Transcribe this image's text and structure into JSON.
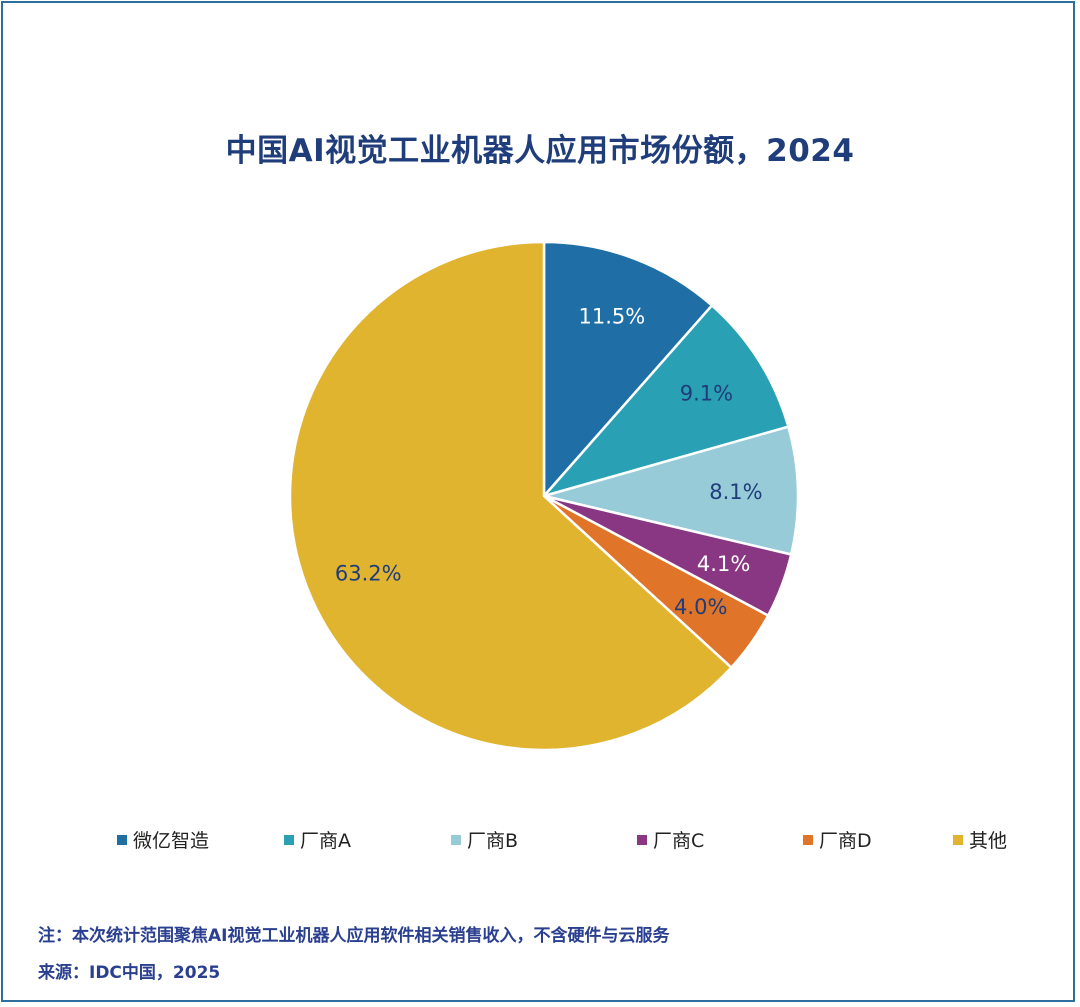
{
  "chart_data": {
    "type": "pie",
    "title": "中国AI视觉工业机器人应用市场份额，2024",
    "slices": [
      {
        "name": "微亿智造",
        "value": 11.5,
        "label": "11.5%",
        "color": "#1f6fa6",
        "label_color": "#ffffff"
      },
      {
        "name": "厂商A",
        "value": 9.1,
        "label": "9.1%",
        "color": "#29a0b4",
        "label_color": "#1f3d7a"
      },
      {
        "name": "厂商B",
        "value": 8.1,
        "label": "8.1%",
        "color": "#98cbd8",
        "label_color": "#1f3d7a"
      },
      {
        "name": "厂商C",
        "value": 4.1,
        "label": "4.1%",
        "color": "#8a3783",
        "label_color": "#ffffff"
      },
      {
        "name": "厂商D",
        "value": 4.0,
        "label": "4.0%",
        "color": "#e07428",
        "label_color": "#1f3d7a"
      },
      {
        "name": "其他",
        "value": 63.2,
        "label": "63.2%",
        "color": "#e0b42f",
        "label_color": "#1f3d7a"
      }
    ],
    "start_angle": "12 o'clock",
    "direction": "clockwise",
    "legend_position": "bottom"
  },
  "notes": {
    "note": "注：本次统计范围聚焦AI视觉工业机器人应用软件相关销售收入，不含硬件与云服务",
    "source": "来源：IDC中国，2025"
  }
}
